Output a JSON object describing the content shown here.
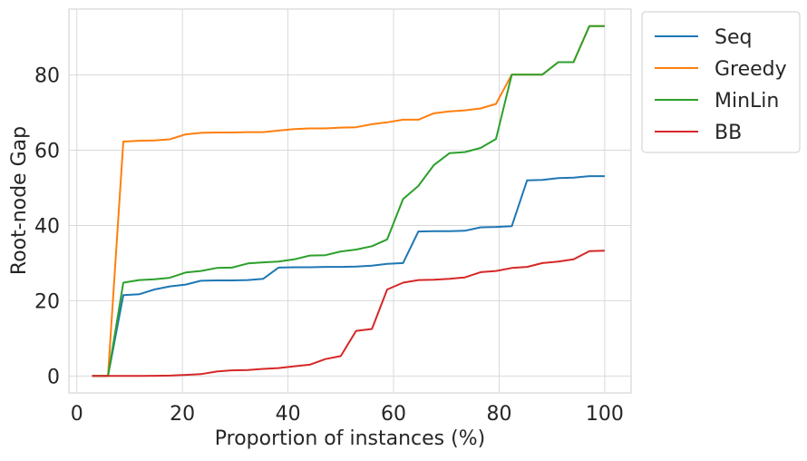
{
  "chart_data": {
    "type": "line",
    "title": "",
    "xlabel": "Proportion of instances (%)",
    "ylabel": "Root-node Gap",
    "xlim": [
      -1.5,
      105
    ],
    "ylim": [
      -4.5,
      97.5
    ],
    "xticks": [
      0,
      20,
      40,
      60,
      80,
      100
    ],
    "yticks": [
      0,
      20,
      40,
      60,
      80
    ],
    "grid": true,
    "legend_position": "outside-top-right",
    "series": [
      {
        "name": "Seq",
        "color": "#1f77b4",
        "x": [
          2.9,
          5.9,
          8.8,
          11.8,
          14.7,
          17.6,
          20.6,
          23.5,
          26.5,
          29.4,
          32.4,
          35.3,
          38.2,
          41.2,
          44.1,
          47.1,
          50.0,
          52.9,
          55.9,
          58.8,
          61.8,
          64.7,
          67.6,
          70.6,
          73.5,
          76.5,
          79.4,
          82.4,
          85.3,
          88.2,
          91.2,
          94.1,
          97.1,
          100.0
        ],
        "y": [
          0,
          0,
          21.5,
          21.7,
          23,
          23.8,
          24.3,
          25.3,
          25.4,
          25.4,
          25.5,
          25.8,
          28.8,
          28.9,
          28.9,
          29.0,
          29.0,
          29.1,
          29.3,
          29.8,
          30.0,
          38.4,
          38.5,
          38.5,
          38.6,
          39.5,
          39.6,
          39.8,
          52.0,
          52.1,
          52.6,
          52.7,
          53.1,
          53.1
        ]
      },
      {
        "name": "Greedy",
        "color": "#ff7f0e",
        "x": [
          2.9,
          5.9,
          8.8,
          11.8,
          14.7,
          17.6,
          20.6,
          23.5,
          26.5,
          29.4,
          32.4,
          35.3,
          38.2,
          41.2,
          44.1,
          47.1,
          50.0,
          52.9,
          55.9,
          58.8,
          61.8,
          64.7,
          67.6,
          70.6,
          73.5,
          76.5,
          79.4,
          82.4,
          85.3,
          88.2,
          91.2,
          94.1,
          97.1,
          100.0
        ],
        "y": [
          0,
          0,
          62.3,
          62.5,
          62.6,
          62.9,
          64.2,
          64.6,
          64.7,
          64.7,
          64.8,
          64.8,
          65.2,
          65.6,
          65.8,
          65.8,
          66.0,
          66.1,
          66.9,
          67.4,
          68.1,
          68.1,
          69.8,
          70.3,
          70.6,
          71.1,
          72.3,
          80.1,
          80.1,
          80.1,
          83.4,
          83.4,
          93.0,
          93.0
        ]
      },
      {
        "name": "MinLin",
        "color": "#2ca02c",
        "x": [
          2.9,
          5.9,
          8.8,
          11.8,
          14.7,
          17.6,
          20.6,
          23.5,
          26.5,
          29.4,
          32.4,
          35.3,
          38.2,
          41.2,
          44.1,
          47.1,
          50.0,
          52.9,
          55.9,
          58.8,
          61.8,
          64.7,
          67.6,
          70.6,
          73.5,
          76.5,
          79.4,
          82.4,
          85.3,
          88.2,
          91.2,
          94.1,
          97.1,
          100.0
        ],
        "y": [
          0,
          0,
          24.8,
          25.5,
          25.7,
          26.1,
          27.5,
          27.9,
          28.7,
          28.8,
          29.9,
          30.2,
          30.4,
          31.0,
          32.0,
          32.1,
          33.1,
          33.6,
          34.5,
          36.3,
          47.0,
          50.5,
          56.0,
          59.2,
          59.5,
          60.6,
          63.0,
          80.1,
          80.1,
          80.1,
          83.4,
          83.4,
          93.0,
          93.0
        ]
      },
      {
        "name": "BB",
        "color": "#d62728",
        "x": [
          2.9,
          5.9,
          8.8,
          11.8,
          14.7,
          17.6,
          20.6,
          23.5,
          26.5,
          29.4,
          32.4,
          35.3,
          38.2,
          41.2,
          44.1,
          47.1,
          50.0,
          52.9,
          55.9,
          58.8,
          61.8,
          64.7,
          67.6,
          70.6,
          73.5,
          76.5,
          79.4,
          82.4,
          85.3,
          88.2,
          91.2,
          94.1,
          97.1,
          100.0
        ],
        "y": [
          0,
          0,
          0,
          0,
          0.05,
          0.1,
          0.3,
          0.5,
          1.2,
          1.5,
          1.6,
          1.9,
          2.1,
          2.6,
          3.0,
          4.5,
          5.3,
          12.0,
          12.5,
          23.0,
          24.8,
          25.5,
          25.6,
          25.8,
          26.2,
          27.6,
          27.9,
          28.7,
          29.0,
          30.0,
          30.4,
          31.0,
          33.2,
          33.3
        ]
      }
    ]
  }
}
